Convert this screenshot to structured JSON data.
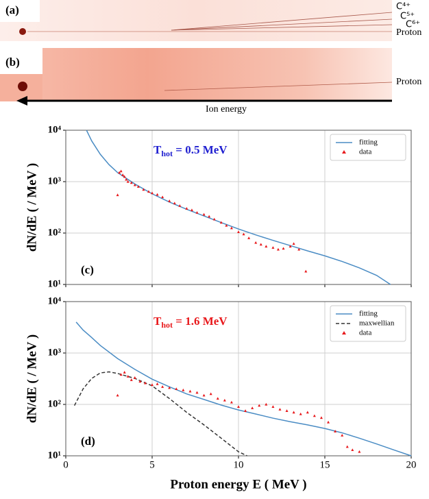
{
  "figure": {
    "panel_a": {
      "label": "(a)",
      "ions": [
        "C⁴⁺",
        "C⁵⁺",
        "C⁶⁺"
      ],
      "proton": "Proton"
    },
    "panel_b": {
      "label": "(b)",
      "proton": "Proton"
    },
    "arrow_label": "Ion energy"
  },
  "chart_data": [
    {
      "type": "line",
      "panel_label": "(c)",
      "annotation": {
        "text": "T",
        "sub": "hot",
        "rest": " = 0.5 MeV"
      },
      "annotation_color": "#1f1fd0",
      "y_label": "dN/dE ( / MeV )",
      "log_y": true,
      "grid": true,
      "legend": "upper right",
      "xlim": [
        0,
        20
      ],
      "xticks": [
        0,
        5,
        10,
        15,
        20
      ],
      "ylim": [
        10,
        10000
      ],
      "yticks": [
        {
          "value": 10,
          "label": "10¹"
        },
        {
          "value": 100,
          "label": "10²"
        },
        {
          "value": 1000,
          "label": "10³"
        },
        {
          "value": 10000,
          "label": "10⁴"
        }
      ],
      "series": [
        {
          "name": "fitting",
          "kind": "line",
          "color": "#4a8cc4",
          "x": [
            1.2,
            1.5,
            2,
            2.5,
            3,
            4,
            5,
            6,
            7,
            8,
            9,
            10,
            11,
            12,
            13,
            14,
            15,
            16,
            17,
            18,
            18.8
          ],
          "values": [
            10000,
            6200,
            3400,
            2150,
            1500,
            900,
            580,
            400,
            290,
            215,
            160,
            120,
            92,
            72,
            57,
            45,
            36,
            28,
            21,
            15,
            10
          ]
        },
        {
          "name": "data",
          "kind": "scatter",
          "color": "#e8191c",
          "x": [
            3.0,
            3.1,
            3.2,
            3.3,
            3.4,
            3.5,
            3.6,
            3.8,
            4.0,
            4.2,
            4.5,
            4.8,
            5.0,
            5.3,
            5.6,
            6.0,
            6.3,
            6.6,
            7.0,
            7.3,
            7.6,
            8.0,
            8.3,
            8.6,
            9.0,
            9.3,
            9.6,
            10.0,
            10.3,
            10.6,
            11.0,
            11.3,
            11.6,
            12.0,
            12.3,
            12.6,
            13.0,
            13.2,
            13.5,
            13.9
          ],
          "values": [
            550,
            1500,
            1600,
            1350,
            1250,
            1100,
            1000,
            950,
            860,
            800,
            700,
            640,
            600,
            560,
            500,
            420,
            380,
            340,
            300,
            280,
            250,
            230,
            210,
            185,
            160,
            140,
            125,
            105,
            95,
            80,
            65,
            60,
            55,
            52,
            48,
            50,
            55,
            62,
            48,
            18
          ]
        }
      ]
    },
    {
      "type": "line",
      "panel_label": "(d)",
      "annotation": {
        "text": "T",
        "sub": "hot",
        "rest": " = 1.6 MeV"
      },
      "annotation_color": "#e8191c",
      "y_label": "dN/dE ( / MeV )",
      "x_label": "Proton energy E ( MeV )",
      "log_y": true,
      "grid": true,
      "legend": "upper right",
      "xlim": [
        0,
        20
      ],
      "xticks": [
        0,
        5,
        10,
        15,
        20
      ],
      "ylim": [
        10,
        10000
      ],
      "yticks": [
        {
          "value": 10,
          "label": "10¹"
        },
        {
          "value": 100,
          "label": "10²"
        },
        {
          "value": 1000,
          "label": "10³"
        },
        {
          "value": 10000,
          "label": "10⁴"
        }
      ],
      "series": [
        {
          "name": "fitting",
          "kind": "line",
          "color": "#4a8cc4",
          "x": [
            0.6,
            1,
            1.5,
            2,
            3,
            4,
            5,
            6,
            7,
            8,
            9,
            10,
            11,
            12,
            13,
            14,
            15,
            16,
            17,
            18,
            19,
            20
          ],
          "values": [
            4000,
            2800,
            2000,
            1400,
            780,
            480,
            310,
            220,
            160,
            125,
            97,
            78,
            65,
            54,
            46,
            40,
            34,
            28,
            22,
            17,
            13,
            10
          ]
        },
        {
          "name": "maxwellian",
          "kind": "dashed",
          "color": "#333333",
          "x": [
            0.5,
            1,
            1.5,
            2,
            2.5,
            3,
            4,
            5,
            6,
            7,
            8,
            9,
            10,
            10.5
          ],
          "values": [
            95,
            200,
            320,
            410,
            430,
            400,
            320,
            230,
            130,
            70,
            40,
            22,
            12,
            10
          ]
        },
        {
          "name": "data",
          "kind": "scatter",
          "color": "#e8191c",
          "x": [
            3.0,
            3.2,
            3.4,
            3.6,
            3.8,
            4.0,
            4.3,
            4.6,
            5.0,
            5.3,
            5.6,
            6.0,
            6.4,
            6.8,
            7.2,
            7.6,
            8.0,
            8.4,
            8.8,
            9.2,
            9.6,
            10.0,
            10.4,
            10.8,
            11.2,
            11.6,
            12.0,
            12.4,
            12.8,
            13.2,
            13.6,
            14.0,
            14.4,
            14.8,
            15.2,
            15.6,
            16.0,
            16.3,
            16.6,
            17.0
          ],
          "values": [
            150,
            380,
            420,
            350,
            300,
            330,
            280,
            260,
            240,
            250,
            220,
            210,
            200,
            190,
            180,
            170,
            150,
            160,
            130,
            120,
            110,
            90,
            75,
            85,
            95,
            100,
            90,
            80,
            75,
            70,
            65,
            70,
            60,
            55,
            45,
            30,
            25,
            15,
            13,
            12
          ]
        }
      ]
    }
  ]
}
